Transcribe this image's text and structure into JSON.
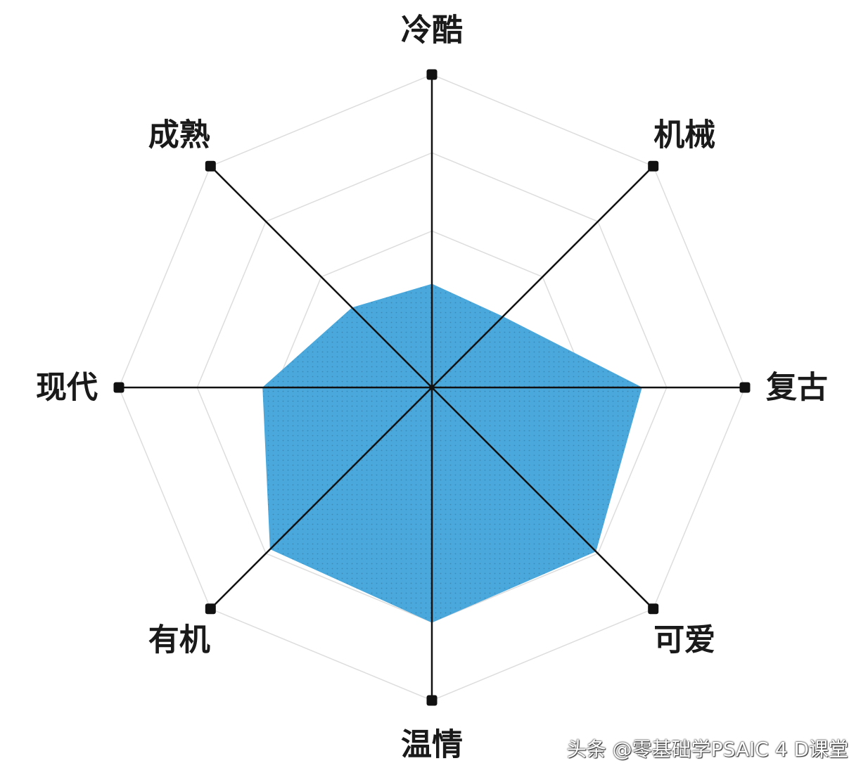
{
  "chart_data": {
    "type": "radar",
    "axes": [
      "冷酷",
      "机械",
      "复古",
      "可爱",
      "温情",
      "有机",
      "现代",
      "成熟"
    ],
    "series": [
      {
        "values": [
          0.33,
          0.32,
          0.67,
          0.74,
          0.75,
          0.73,
          0.54,
          0.36
        ]
      }
    ],
    "range": [
      0,
      1
    ],
    "rings": 4,
    "fill_color": "#4aa8dc",
    "fill_pattern": "dotted",
    "axis_color": "#111111",
    "grid_color": "#dddddd",
    "marker": "square"
  },
  "watermark": {
    "text": "头条 @零基础学PSAIC 4 D课堂"
  }
}
